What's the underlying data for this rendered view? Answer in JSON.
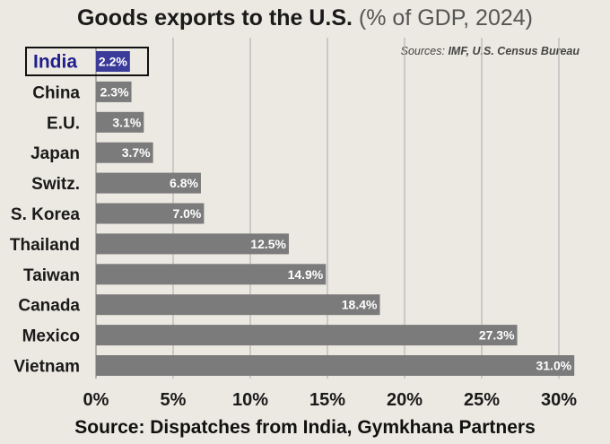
{
  "title_main": "Goods exports to the U.S.",
  "title_sub": "(% of GDP, 2024)",
  "sources_label": "Sources:",
  "sources_list": "IMF, U.S. Census Bureau",
  "footer": "Source: Dispatches from India, Gymkhana Partners",
  "colors": {
    "bar": "#7b7b7b",
    "highlight_bar": "#3b3b9a",
    "highlight_text": "#1f1f8c",
    "grid": "#b8b8b8",
    "background": "#ece9e2"
  },
  "chart_data": {
    "type": "bar",
    "orientation": "horizontal",
    "title": "Goods exports to the U.S. (% of GDP, 2024)",
    "categories": [
      "India",
      "China",
      "E.U.",
      "Japan",
      "Switz.",
      "S. Korea",
      "Thailand",
      "Taiwan",
      "Canada",
      "Mexico",
      "Vietnam"
    ],
    "values": [
      2.2,
      2.3,
      3.1,
      3.7,
      6.8,
      7.0,
      12.5,
      14.9,
      18.4,
      27.3,
      31.0
    ],
    "value_labels": [
      "2.2%",
      "2.3%",
      "3.1%",
      "3.7%",
      "6.8%",
      "7.0%",
      "12.5%",
      "14.9%",
      "18.4%",
      "27.3%",
      "31.0%"
    ],
    "highlight": "India",
    "xlim": [
      0,
      31
    ],
    "x_ticks": [
      0,
      5,
      10,
      15,
      20,
      25,
      30
    ],
    "x_tick_labels": [
      "0%",
      "5%",
      "10%",
      "15%",
      "20%",
      "25%",
      "30%"
    ],
    "xlabel": "",
    "ylabel": "",
    "grid": "vertical"
  }
}
